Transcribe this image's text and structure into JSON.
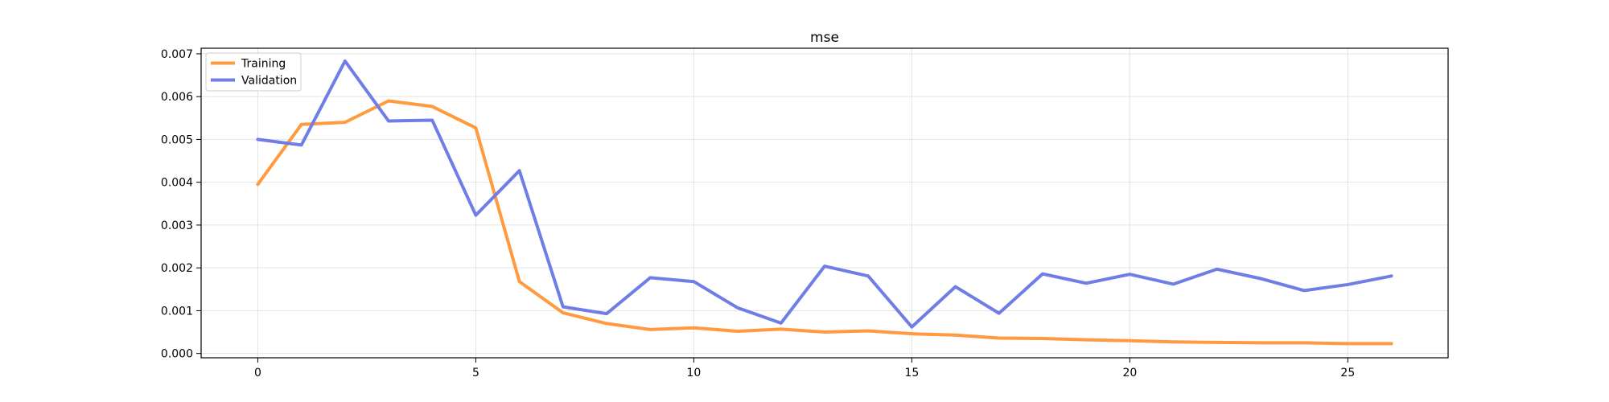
{
  "chart_data": {
    "type": "line",
    "title": "mse",
    "xlabel": "",
    "ylabel": "",
    "x": [
      0,
      1,
      2,
      3,
      4,
      5,
      6,
      7,
      8,
      9,
      10,
      11,
      12,
      13,
      14,
      15,
      16,
      17,
      18,
      19,
      20,
      21,
      22,
      23,
      24,
      25,
      26
    ],
    "series": [
      {
        "name": "Training",
        "color": "#ff9a3f",
        "values": [
          0.00395,
          0.00535,
          0.0054,
          0.0059,
          0.00577,
          0.00527,
          0.00168,
          0.00095,
          0.0007,
          0.00056,
          0.0006,
          0.00052,
          0.00057,
          0.0005,
          0.00053,
          0.00046,
          0.00043,
          0.00036,
          0.00035,
          0.00032,
          0.0003,
          0.00027,
          0.00026,
          0.00025,
          0.00025,
          0.00023,
          0.00023
        ]
      },
      {
        "name": "Validation",
        "color": "#6f7ee6",
        "values": [
          0.005,
          0.00487,
          0.00683,
          0.00543,
          0.00545,
          0.00323,
          0.00427,
          0.00109,
          0.00093,
          0.00177,
          0.00168,
          0.00107,
          0.00071,
          0.00204,
          0.00181,
          0.00062,
          0.00156,
          0.00094,
          0.00186,
          0.00164,
          0.00185,
          0.00162,
          0.00197,
          0.00175,
          0.00147,
          0.00161,
          0.00181
        ]
      }
    ],
    "xticks": [
      0,
      5,
      10,
      15,
      20,
      25
    ],
    "xtick_labels": [
      "0",
      "5",
      "10",
      "15",
      "20",
      "25"
    ],
    "yticks": [
      0,
      0.001,
      0.002,
      0.003,
      0.004,
      0.005,
      0.006,
      0.007
    ],
    "ytick_labels": [
      "0.000",
      "0.001",
      "0.002",
      "0.003",
      "0.004",
      "0.005",
      "0.006",
      "0.007"
    ],
    "xlim": [
      -1.3,
      27.3
    ],
    "ylim": [
      -0.0001,
      0.00713
    ],
    "grid": true,
    "legend_position": "top-left"
  }
}
